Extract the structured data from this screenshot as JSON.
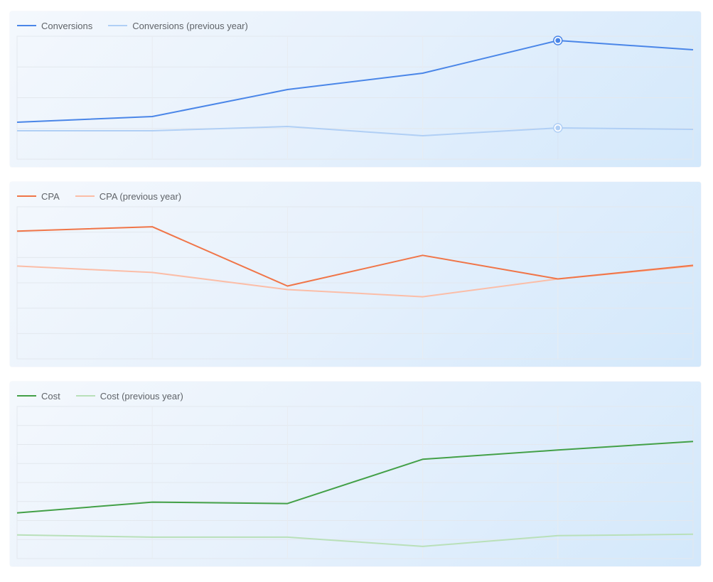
{
  "chart_data": [
    {
      "type": "line",
      "categories": [
        "",
        "",
        "",
        "",
        "",
        ""
      ],
      "series": [
        {
          "name": "Conversions",
          "values": [
            41,
            49,
            87,
            110,
            156,
            143
          ],
          "color": "#4a86e8"
        },
        {
          "name": "Conversions (previous year)",
          "values": [
            29,
            29,
            35,
            22,
            33,
            31
          ],
          "color": "#b0cff5"
        }
      ],
      "ylim": [
        -11,
        162
      ],
      "grid": true,
      "legend": "top-left",
      "highlight_index": 4
    },
    {
      "type": "line",
      "categories": [
        "",
        "",
        "",
        "",
        "",
        ""
      ],
      "series": [
        {
          "name": "CPA",
          "values": [
            179,
            185,
            102,
            145,
            112,
            131
          ],
          "color": "#f07548"
        },
        {
          "name": "CPA (previous year)",
          "values": [
            130,
            121,
            97,
            87,
            112,
            130
          ],
          "color": "#fbbda7"
        }
      ],
      "ylim": [
        0,
        213
      ],
      "grid": true,
      "legend": "top-left"
    },
    {
      "type": "line",
      "categories": [
        "",
        "",
        "",
        "",
        "",
        ""
      ],
      "series": [
        {
          "name": "Cost",
          "values": [
            64,
            79,
            77,
            139,
            152,
            164
          ],
          "color": "#43a047"
        },
        {
          "name": "Cost (previous year)",
          "values": [
            33,
            30,
            30,
            17,
            32,
            34
          ],
          "color": "#b9e0b9"
        }
      ],
      "ylim": [
        0,
        213
      ],
      "grid": true,
      "legend": "top-left"
    }
  ]
}
